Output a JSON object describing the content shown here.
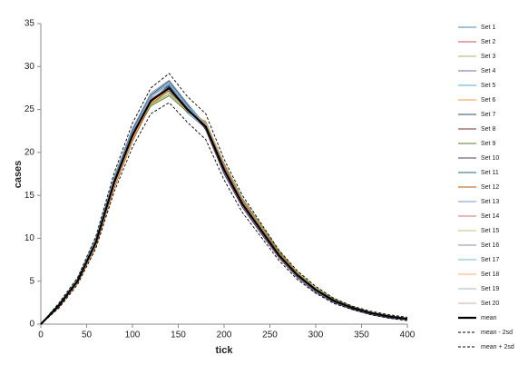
{
  "chart_data": {
    "type": "line",
    "xlabel": "tick",
    "ylabel": "cases",
    "x": [
      0,
      20,
      40,
      60,
      80,
      100,
      120,
      140,
      160,
      180,
      200,
      220,
      240,
      260,
      280,
      300,
      320,
      340,
      360,
      380,
      400
    ],
    "xlim": [
      0,
      400
    ],
    "xticks": [
      0,
      50,
      100,
      150,
      200,
      250,
      300,
      350,
      400
    ],
    "ylim": [
      0,
      35
    ],
    "yticks": [
      0,
      5,
      10,
      15,
      20,
      25,
      30,
      35
    ],
    "series": [
      {
        "name": "Set 1",
        "color": "#4f81bd",
        "values": [
          0,
          2.1,
          5.1,
          9.6,
          16.8,
          22.5,
          26.4,
          27.1,
          24.6,
          22.8,
          17.6,
          13.8,
          10.9,
          7.9,
          5.6,
          3.9,
          2.6,
          1.8,
          1.2,
          0.8,
          0.5
        ]
      },
      {
        "name": "Set 2",
        "color": "#c0504d",
        "values": [
          0,
          2.3,
          4.9,
          9.2,
          16.1,
          21.6,
          25.8,
          27.9,
          25.4,
          23.3,
          18.4,
          14.3,
          11.2,
          8.2,
          5.9,
          4.1,
          2.8,
          2,
          1.4,
          1,
          0.7
        ]
      },
      {
        "name": "Set 3",
        "color": "#9bbb59",
        "values": [
          0,
          2.2,
          5.2,
          9.9,
          17,
          22.4,
          25.5,
          26.8,
          24.8,
          23.5,
          18.6,
          14.5,
          11.5,
          8.4,
          6,
          4.2,
          2.9,
          2,
          1.3,
          0.9,
          0.6
        ]
      },
      {
        "name": "Set 4",
        "color": "#8064a2",
        "values": [
          0,
          2,
          4.8,
          9.3,
          16.3,
          21.8,
          26.2,
          27.6,
          25.2,
          22.7,
          17.8,
          13.7,
          10.7,
          7.8,
          5.5,
          3.8,
          2.6,
          1.8,
          1.2,
          0.8,
          0.5
        ]
      },
      {
        "name": "Set 5",
        "color": "#4bacc6",
        "values": [
          0,
          2.4,
          5.1,
          9.7,
          16.6,
          22.3,
          26.6,
          28.1,
          25.5,
          23.1,
          18.1,
          14.1,
          11,
          8,
          5.7,
          4,
          2.7,
          1.9,
          1.3,
          0.9,
          0.6
        ]
      },
      {
        "name": "Set 6",
        "color": "#f79646",
        "values": [
          0,
          2.1,
          4.7,
          9,
          15.9,
          21.4,
          25.7,
          27.3,
          25,
          23.4,
          18.3,
          14.2,
          11.1,
          8.1,
          5.8,
          4,
          2.7,
          1.9,
          1.3,
          0.9,
          0.6
        ]
      },
      {
        "name": "Set 7",
        "color": "#2c4d75",
        "values": [
          0,
          2.2,
          5,
          9.5,
          16.7,
          22.1,
          26.1,
          27.8,
          24.9,
          22.9,
          17.9,
          13.9,
          10.9,
          7.9,
          5.6,
          3.9,
          2.6,
          1.8,
          1.2,
          0.8,
          0.5
        ]
      },
      {
        "name": "Set 8",
        "color": "#772c2a",
        "values": [
          0,
          2.3,
          5.2,
          9.4,
          16.4,
          22,
          26.3,
          27.4,
          25.3,
          23.2,
          18.2,
          14,
          11,
          8,
          5.7,
          4,
          2.7,
          1.9,
          1.3,
          0.9,
          0.6
        ]
      },
      {
        "name": "Set 9",
        "color": "#5f7530",
        "values": [
          0,
          2.1,
          4.9,
          9.6,
          16.2,
          21.7,
          25.4,
          26.6,
          24.7,
          23.6,
          18.7,
          14.6,
          11.6,
          8.5,
          6.1,
          4.3,
          2.9,
          2.1,
          1.4,
          1,
          0.7
        ]
      },
      {
        "name": "Set 10",
        "color": "#4d3b62",
        "values": [
          0,
          2.2,
          5.1,
          9.8,
          16.9,
          22.6,
          26.7,
          28.3,
          25.6,
          22.6,
          17.5,
          13.6,
          10.6,
          7.7,
          5.4,
          3.7,
          2.5,
          1.7,
          1.1,
          0.7,
          0.5
        ]
      },
      {
        "name": "Set 11",
        "color": "#276a7c",
        "values": [
          0,
          2.3,
          5,
          9.3,
          16.5,
          22.2,
          26,
          27.7,
          25.1,
          23,
          18,
          14,
          11,
          8,
          5.7,
          4,
          2.7,
          1.9,
          1.3,
          0.9,
          0.6
        ]
      },
      {
        "name": "Set 12",
        "color": "#b65708",
        "values": [
          0,
          2,
          4.8,
          9.1,
          15.8,
          21.3,
          25.6,
          27.2,
          24.9,
          23.3,
          18.3,
          14.3,
          11.3,
          8.3,
          5.9,
          4.1,
          2.8,
          2,
          1.4,
          1,
          0.7
        ]
      },
      {
        "name": "Set 13",
        "color": "#729aca",
        "values": [
          0,
          2.4,
          5.3,
          10,
          17.2,
          22.8,
          26.9,
          28.4,
          25.7,
          23.2,
          18.1,
          14.1,
          11,
          8,
          5.7,
          4,
          2.7,
          1.9,
          1.3,
          0.9,
          0.6
        ]
      },
      {
        "name": "Set 14",
        "color": "#cd7371",
        "values": [
          0,
          2.2,
          4.9,
          9.4,
          16.3,
          21.9,
          26.2,
          27.5,
          25.2,
          23.4,
          18.5,
          14.4,
          11.3,
          8.2,
          5.8,
          4.1,
          2.8,
          2,
          1.3,
          0.9,
          0.6
        ]
      },
      {
        "name": "Set 15",
        "color": "#afc97a",
        "values": [
          0,
          2.1,
          5,
          9.5,
          16.6,
          22,
          25.6,
          26.9,
          24.8,
          23.5,
          18.8,
          14.7,
          11.7,
          8.6,
          6.1,
          4.3,
          3,
          2.1,
          1.4,
          1,
          0.7
        ]
      },
      {
        "name": "Set 16",
        "color": "#9983b5",
        "values": [
          0,
          2.3,
          5.1,
          9.7,
          16.7,
          22.3,
          26.5,
          27.9,
          25.3,
          22.9,
          17.8,
          13.8,
          10.8,
          7.8,
          5.5,
          3.8,
          2.6,
          1.8,
          1.2,
          0.8,
          0.5
        ]
      },
      {
        "name": "Set 17",
        "color": "#6fbdd1",
        "values": [
          0,
          2.2,
          5.2,
          9.8,
          16.8,
          22.4,
          26.6,
          28,
          25.4,
          23,
          17.9,
          13.9,
          10.9,
          7.9,
          5.6,
          3.9,
          2.6,
          1.8,
          1.2,
          0.8,
          0.6
        ]
      },
      {
        "name": "Set 18",
        "color": "#f9ab6b",
        "values": [
          0,
          2.1,
          4.8,
          9.2,
          16,
          21.5,
          25.9,
          27.4,
          25,
          23.2,
          18.2,
          14.2,
          11.1,
          8.1,
          5.8,
          4,
          2.7,
          1.9,
          1.3,
          0.9,
          0.6
        ]
      },
      {
        "name": "Set 19",
        "color": "#a5b6d6",
        "values": [
          0,
          2.3,
          5,
          9.6,
          16.6,
          22.1,
          26.3,
          27.6,
          25.1,
          23.1,
          18,
          14,
          11,
          8,
          5.7,
          4,
          2.7,
          1.9,
          1.3,
          0.9,
          0.6
        ]
      },
      {
        "name": "Set 20",
        "color": "#d6a8a6",
        "values": [
          0,
          2.2,
          5,
          9.4,
          16.4,
          21.9,
          26,
          27.3,
          25,
          23,
          18.1,
          14.1,
          11,
          8,
          5.7,
          4,
          2.7,
          1.9,
          1.3,
          0.9,
          0.6
        ]
      },
      {
        "name": "mean",
        "color": "#000000",
        "width": 2.2,
        "values": [
          0,
          2.2,
          5,
          9.5,
          16.5,
          22,
          26,
          27.5,
          25,
          23,
          18,
          14,
          11,
          8,
          5.7,
          4,
          2.7,
          1.9,
          1.3,
          0.9,
          0.6
        ]
      },
      {
        "name": "mean - 2sd",
        "color": "#000000",
        "dashed": true,
        "values": [
          0,
          1.9,
          4.6,
          8.8,
          15.4,
          20.6,
          24.5,
          25.8,
          23.5,
          21.5,
          16.8,
          13,
          10.2,
          7.4,
          5.2,
          3.6,
          2.4,
          1.7,
          1.1,
          0.7,
          0.4
        ]
      },
      {
        "name": "mean + 2sd",
        "color": "#000000",
        "dashed": true,
        "values": [
          0,
          2.5,
          5.4,
          10.2,
          17.6,
          23.4,
          27.5,
          29.2,
          26.5,
          24.5,
          19.2,
          15,
          11.8,
          8.6,
          6.2,
          4.4,
          3,
          2.1,
          1.5,
          1.1,
          0.8
        ]
      }
    ]
  }
}
